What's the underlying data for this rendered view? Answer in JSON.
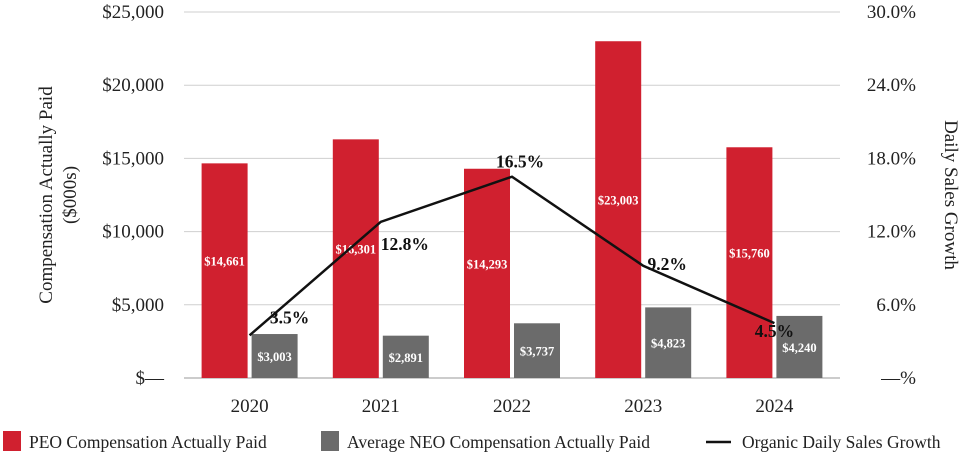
{
  "chart_data": {
    "type": "bar",
    "categories": [
      "2020",
      "2021",
      "2022",
      "2023",
      "2024"
    ],
    "series": [
      {
        "name": "PEO Compensation Actually Paid",
        "axis": "left",
        "color": "#d0202f",
        "values": [
          14661,
          16301,
          14293,
          23003,
          15760
        ],
        "labels": [
          "$14,661",
          "$16,301",
          "$14,293",
          "$23,003",
          "$15,760"
        ]
      },
      {
        "name": "Average NEO Compensation Actually Paid",
        "axis": "left",
        "color": "#6b6b6b",
        "values": [
          3003,
          2891,
          3737,
          4823,
          4240
        ],
        "labels": [
          "$3,003",
          "$2,891",
          "$3,737",
          "$4,823",
          "$4,240"
        ]
      },
      {
        "name": "Organic Daily Sales Growth",
        "axis": "right",
        "type": "line",
        "color": "#111111",
        "values": [
          3.5,
          12.8,
          16.5,
          9.2,
          4.5
        ],
        "labels": [
          "3.5%",
          "12.8%",
          "16.5%",
          "9.2%",
          "4.5%"
        ]
      }
    ],
    "ylabel": "Compensation Actually Paid ($000s)",
    "ylabel_lines": [
      "Compensation Actually Paid",
      "($000s)"
    ],
    "y2label": "Daily Sales Growth",
    "ylim": [
      0,
      25000
    ],
    "y2lim": [
      0,
      30
    ],
    "yticks": [
      0,
      5000,
      10000,
      15000,
      20000,
      25000
    ],
    "ytick_labels": [
      "$—",
      "$5,000",
      "$10,000",
      "$15,000",
      "$20,000",
      "$25,000"
    ],
    "y2ticks": [
      0,
      6,
      12,
      18,
      24,
      30
    ],
    "y2tick_labels": [
      "—%",
      "6.0%",
      "12.0%",
      "18.0%",
      "24.0%",
      "30.0%"
    ],
    "grid": true,
    "legend_position": "bottom"
  }
}
